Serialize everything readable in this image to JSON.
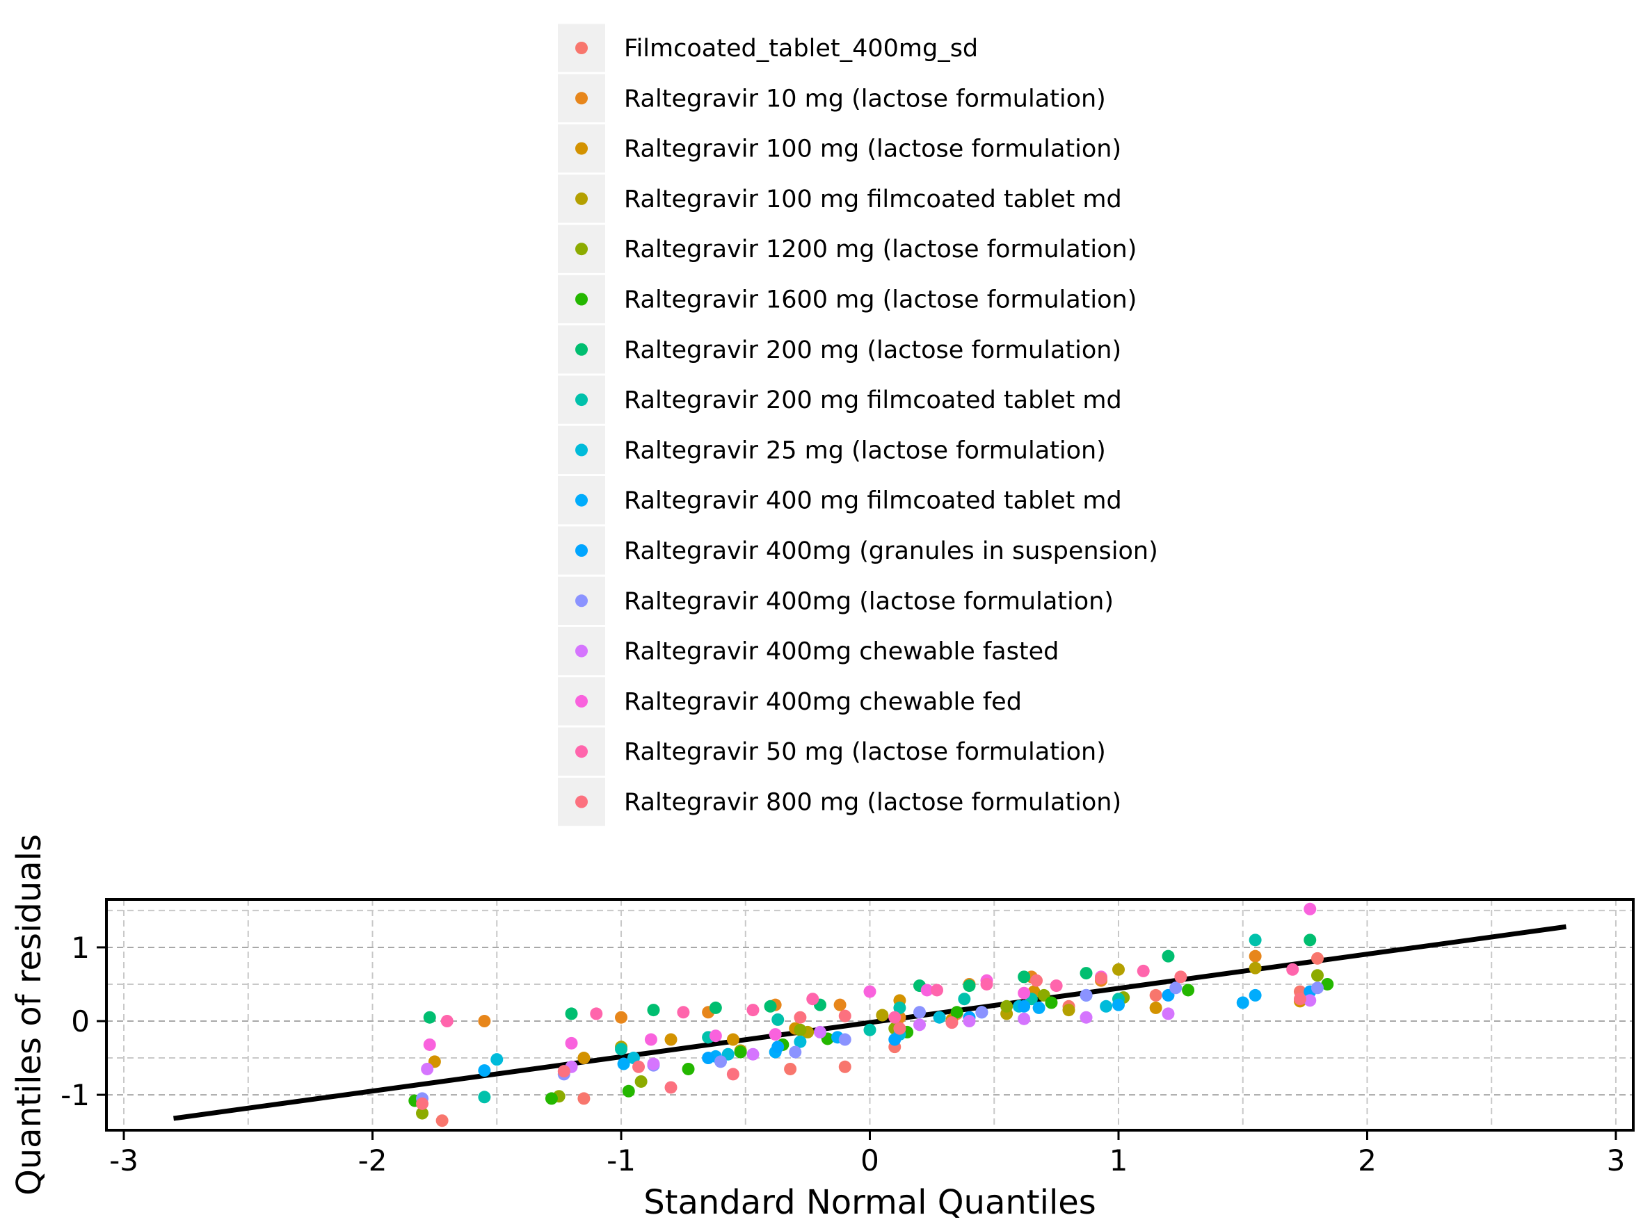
{
  "chart_data": {
    "type": "scatter",
    "xlabel": "Standard Normal Quantiles",
    "ylabel": "Quantiles of residuals",
    "xlim": [
      -3.07,
      3.07
    ],
    "ylim": [
      -1.48,
      1.65
    ],
    "xticks": [
      -3,
      -2,
      -1,
      0,
      1,
      2,
      3
    ],
    "yticks": [
      -1,
      0,
      1
    ],
    "xtick_labels": [
      "-3",
      "-2",
      "-1",
      "0",
      "1",
      "2",
      "3"
    ],
    "ytick_labels": [
      "-1",
      "0",
      "1"
    ],
    "grid": true,
    "legend_position": "top",
    "reference_line": {
      "x": [
        -2.8,
        2.8
      ],
      "y": [
        -1.32,
        1.28
      ],
      "color": "#000000"
    },
    "series": [
      {
        "name": "Filmcoated_tablet_400mg_sd",
        "color": "#F8766D",
        "points": [
          [
            -1.72,
            -1.35
          ],
          [
            -1.15,
            -1.05
          ],
          [
            -0.32,
            -0.65
          ],
          [
            -0.1,
            -0.62
          ],
          [
            0.1,
            -0.35
          ],
          [
            0.35,
            0.1
          ],
          [
            0.8,
            0.2
          ],
          [
            1.15,
            0.35
          ],
          [
            1.73,
            0.4
          ],
          [
            1.8,
            0.85
          ]
        ]
      },
      {
        "name": "Raltegravir 10 mg (lactose formulation)",
        "color": "#E7861B",
        "points": [
          [
            -1.55,
            0.0
          ],
          [
            -1.0,
            0.05
          ],
          [
            -0.65,
            0.12
          ],
          [
            -0.38,
            0.22
          ],
          [
            -0.12,
            0.22
          ],
          [
            0.12,
            0.05
          ],
          [
            0.4,
            0.5
          ],
          [
            0.65,
            0.6
          ],
          [
            0.93,
            0.55
          ],
          [
            1.55,
            0.88
          ]
        ]
      },
      {
        "name": "Raltegravir 100 mg (lactose formulation)",
        "color": "#D39200",
        "points": [
          [
            -1.75,
            -0.55
          ],
          [
            -1.15,
            -0.5
          ],
          [
            -0.8,
            -0.25
          ],
          [
            -0.55,
            -0.25
          ],
          [
            -0.3,
            -0.1
          ],
          [
            0.12,
            0.28
          ],
          [
            0.33,
            0.02
          ],
          [
            0.66,
            0.4
          ],
          [
            1.15,
            0.18
          ],
          [
            1.73,
            0.27
          ]
        ]
      },
      {
        "name": "Raltegravir 100 mg filmcoated tablet md",
        "color": "#B4A000",
        "points": [
          [
            -1.0,
            -0.35
          ],
          [
            -0.52,
            -0.4
          ],
          [
            -0.25,
            -0.15
          ],
          [
            0.05,
            0.08
          ],
          [
            0.55,
            0.1
          ],
          [
            0.8,
            0.15
          ],
          [
            1.0,
            0.7
          ],
          [
            1.55,
            0.72
          ]
        ]
      },
      {
        "name": "Raltegravir 1200 mg (lactose formulation)",
        "color": "#8CAB00",
        "points": [
          [
            -1.8,
            -1.25
          ],
          [
            -1.25,
            -1.02
          ],
          [
            -0.92,
            -0.82
          ],
          [
            -0.28,
            -0.12
          ],
          [
            0.1,
            -0.1
          ],
          [
            0.55,
            0.2
          ],
          [
            0.7,
            0.35
          ],
          [
            1.02,
            0.32
          ],
          [
            1.8,
            0.62
          ]
        ]
      },
      {
        "name": "Raltegravir 1600 mg (lactose formulation)",
        "color": "#24B700",
        "points": [
          [
            -1.83,
            -1.08
          ],
          [
            -1.28,
            -1.05
          ],
          [
            -0.97,
            -0.95
          ],
          [
            -0.73,
            -0.65
          ],
          [
            -0.52,
            -0.42
          ],
          [
            -0.35,
            -0.32
          ],
          [
            -0.17,
            -0.24
          ],
          [
            0.15,
            -0.15
          ],
          [
            0.35,
            0.12
          ],
          [
            0.73,
            0.25
          ],
          [
            1.28,
            0.42
          ],
          [
            1.84,
            0.5
          ]
        ]
      },
      {
        "name": "Raltegravir 200 mg (lactose formulation)",
        "color": "#00BE70",
        "points": [
          [
            -1.77,
            0.05
          ],
          [
            -1.2,
            0.1
          ],
          [
            -0.87,
            0.15
          ],
          [
            -0.62,
            0.18
          ],
          [
            -0.4,
            0.2
          ],
          [
            -0.2,
            0.22
          ],
          [
            0.2,
            0.48
          ],
          [
            0.4,
            0.48
          ],
          [
            0.62,
            0.6
          ],
          [
            0.87,
            0.65
          ],
          [
            1.2,
            0.88
          ],
          [
            1.77,
            1.1
          ]
        ]
      },
      {
        "name": "Raltegravir 200 mg filmcoated tablet md",
        "color": "#00C1AB",
        "points": [
          [
            -1.55,
            -1.03
          ],
          [
            -1.0,
            -0.38
          ],
          [
            -0.65,
            -0.22
          ],
          [
            -0.37,
            0.02
          ],
          [
            0.0,
            -0.12
          ],
          [
            0.12,
            0.18
          ],
          [
            0.38,
            0.3
          ],
          [
            0.65,
            0.3
          ],
          [
            1.0,
            0.3
          ],
          [
            1.55,
            1.1
          ]
        ]
      },
      {
        "name": "Raltegravir 25 mg (lactose formulation)",
        "color": "#00BBDA",
        "points": [
          [
            -1.5,
            -0.52
          ],
          [
            -0.95,
            -0.5
          ],
          [
            -0.57,
            -0.45
          ],
          [
            -0.28,
            -0.28
          ],
          [
            0.12,
            -0.18
          ],
          [
            0.28,
            0.05
          ],
          [
            0.6,
            0.2
          ],
          [
            0.95,
            0.2
          ]
        ]
      },
      {
        "name": "Raltegravir 400 mg filmcoated tablet md",
        "color": "#00ACFC",
        "points": [
          [
            -1.55,
            -0.67
          ],
          [
            -0.99,
            -0.58
          ],
          [
            -0.62,
            -0.48
          ],
          [
            -0.38,
            -0.42
          ],
          [
            -0.13,
            -0.22
          ],
          [
            0.45,
            0.12
          ],
          [
            0.68,
            0.18
          ],
          [
            1.0,
            0.22
          ],
          [
            1.5,
            0.25
          ],
          [
            1.55,
            0.35
          ]
        ]
      },
      {
        "name": "Raltegravir 400mg (granules in suspension)",
        "color": "#00A5FF",
        "points": [
          [
            -0.65,
            -0.5
          ],
          [
            -0.37,
            -0.35
          ],
          [
            0.1,
            -0.25
          ],
          [
            0.4,
            0.05
          ],
          [
            0.62,
            0.2
          ],
          [
            0.87,
            0.35
          ],
          [
            1.2,
            0.35
          ],
          [
            1.77,
            0.4
          ]
        ]
      },
      {
        "name": "Raltegravir 400mg (lactose formulation)",
        "color": "#8B93FF",
        "points": [
          [
            -1.8,
            -1.05
          ],
          [
            -1.23,
            -0.72
          ],
          [
            -0.87,
            -0.6
          ],
          [
            -0.6,
            -0.55
          ],
          [
            -0.3,
            -0.42
          ],
          [
            -0.1,
            -0.25
          ],
          [
            0.2,
            0.12
          ],
          [
            0.45,
            0.12
          ],
          [
            0.87,
            0.35
          ],
          [
            1.23,
            0.45
          ],
          [
            1.8,
            0.45
          ]
        ]
      },
      {
        "name": "Raltegravir 400mg chewable fasted",
        "color": "#D575FE",
        "points": [
          [
            -1.78,
            -0.65
          ],
          [
            -1.2,
            -0.62
          ],
          [
            -0.87,
            -0.58
          ],
          [
            -0.47,
            -0.45
          ],
          [
            -0.2,
            -0.15
          ],
          [
            0.2,
            -0.05
          ],
          [
            0.4,
            0.0
          ],
          [
            0.62,
            0.03
          ],
          [
            0.87,
            0.05
          ],
          [
            1.2,
            0.1
          ],
          [
            1.77,
            0.28
          ]
        ]
      },
      {
        "name": "Raltegravir 400mg chewable fed",
        "color": "#F962DD",
        "points": [
          [
            -1.77,
            -0.32
          ],
          [
            -1.2,
            -0.3
          ],
          [
            -0.88,
            -0.25
          ],
          [
            -0.62,
            -0.2
          ],
          [
            -0.38,
            -0.18
          ],
          [
            0.0,
            0.4
          ],
          [
            0.23,
            0.42
          ],
          [
            0.47,
            0.55
          ],
          [
            0.62,
            0.38
          ],
          [
            0.93,
            0.6
          ],
          [
            1.77,
            1.52
          ]
        ]
      },
      {
        "name": "Raltegravir 50 mg (lactose formulation)",
        "color": "#FF65AC",
        "points": [
          [
            -1.7,
            0.0
          ],
          [
            -1.1,
            0.1
          ],
          [
            -0.75,
            0.12
          ],
          [
            -0.47,
            0.15
          ],
          [
            -0.23,
            0.3
          ],
          [
            0.1,
            0.05
          ],
          [
            0.27,
            0.42
          ],
          [
            0.47,
            0.5
          ],
          [
            0.75,
            0.48
          ],
          [
            1.1,
            0.68
          ],
          [
            1.7,
            0.7
          ]
        ]
      },
      {
        "name": "Raltegravir 800 mg (lactose formulation)",
        "color": "#FC717F",
        "points": [
          [
            -1.8,
            -1.12
          ],
          [
            -1.23,
            -0.68
          ],
          [
            -0.93,
            -0.62
          ],
          [
            -0.8,
            -0.9
          ],
          [
            -0.55,
            -0.72
          ],
          [
            -0.28,
            0.05
          ],
          [
            -0.1,
            0.07
          ],
          [
            0.12,
            -0.1
          ],
          [
            0.33,
            -0.02
          ],
          [
            0.67,
            0.55
          ],
          [
            0.93,
            0.58
          ],
          [
            1.25,
            0.6
          ],
          [
            1.73,
            0.3
          ]
        ]
      }
    ]
  }
}
